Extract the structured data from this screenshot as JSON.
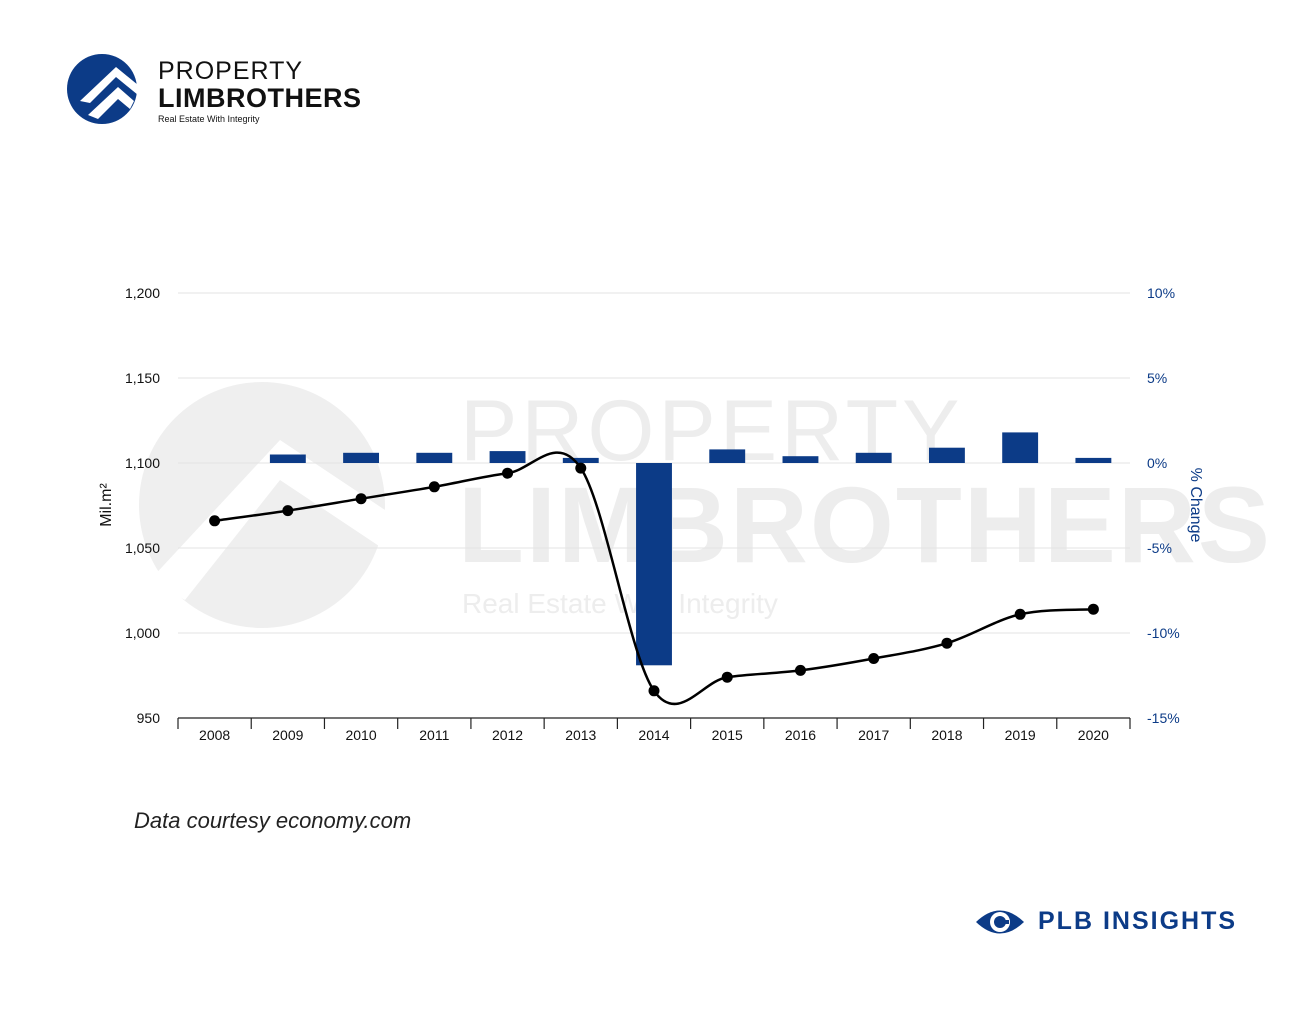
{
  "brand": {
    "top": "PROPERTY",
    "main": "LIMBROTHERS",
    "tagline": "Real Estate With Integrity",
    "color": "#0c3b87"
  },
  "watermark": {
    "top": "PROPERTY",
    "main": "LIMBROTHERS",
    "tagline": "Real Estate With Integrity"
  },
  "source_note": "Data courtesy economy.com",
  "insights_brand": "PLB INSIGHTS",
  "chart_data": {
    "type": "bar",
    "categories": [
      "2008",
      "2009",
      "2010",
      "2011",
      "2012",
      "2013",
      "2014",
      "2015",
      "2016",
      "2017",
      "2018",
      "2019",
      "2020"
    ],
    "series": [
      {
        "type": "line",
        "axis": "left",
        "color": "#000000",
        "values": [
          1066,
          1072,
          1079,
          1086,
          1094,
          1097,
          966,
          974,
          978,
          985,
          994,
          1011,
          1014
        ]
      },
      {
        "type": "bar",
        "axis": "right",
        "color": "#0c3b87",
        "values": [
          null,
          0.5,
          0.6,
          0.6,
          0.7,
          0.3,
          -11.9,
          0.8,
          0.4,
          0.6,
          0.9,
          1.8,
          0.3
        ]
      }
    ],
    "ylabel": "Mil.m²",
    "y2label": "% Change",
    "ylim": [
      950,
      1200
    ],
    "y2lim": [
      -15,
      10
    ],
    "yticks": [
      "1,200",
      "1,150",
      "1,100",
      "1,050",
      "1,000",
      "950"
    ],
    "y2ticks": [
      "10%",
      "5%",
      "0%",
      "-5%",
      "-10%",
      "-15%"
    ],
    "grid": true
  }
}
